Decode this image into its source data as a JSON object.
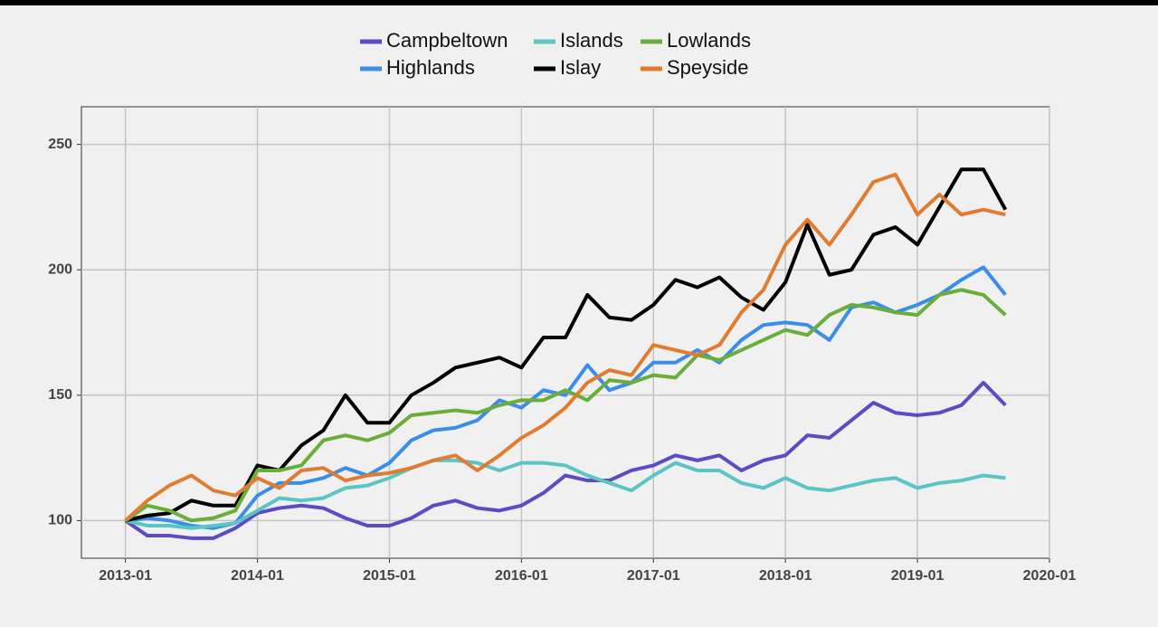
{
  "chart_data": {
    "type": "line",
    "x": [
      "2013-01",
      "2013-03",
      "2013-05",
      "2013-07",
      "2013-09",
      "2013-11",
      "2014-01",
      "2014-03",
      "2014-05",
      "2014-07",
      "2014-09",
      "2014-11",
      "2015-01",
      "2015-03",
      "2015-05",
      "2015-07",
      "2015-09",
      "2015-11",
      "2016-01",
      "2016-03",
      "2016-05",
      "2016-07",
      "2016-09",
      "2016-11",
      "2017-01",
      "2017-03",
      "2017-05",
      "2017-07",
      "2017-09",
      "2017-11",
      "2018-01",
      "2018-03",
      "2018-05",
      "2018-07",
      "2018-09",
      "2018-11",
      "2019-01",
      "2019-03",
      "2019-05",
      "2019-07",
      "2019-09"
    ],
    "series": [
      {
        "name": "Campbeltown",
        "color": "#5b4cc4",
        "values": [
          100,
          94,
          94,
          93,
          93,
          97,
          103,
          105,
          106,
          105,
          101,
          98,
          98,
          101,
          106,
          108,
          105,
          104,
          106,
          111,
          118,
          116,
          116,
          120,
          122,
          126,
          124,
          126,
          120,
          124,
          126,
          134,
          133,
          140,
          147,
          143,
          142,
          143,
          146,
          155,
          146
        ]
      },
      {
        "name": "Highlands",
        "color": "#3a8ee8",
        "values": [
          100,
          101,
          100,
          98,
          97,
          99,
          110,
          115,
          115,
          117,
          121,
          118,
          123,
          132,
          136,
          137,
          140,
          148,
          145,
          152,
          150,
          162,
          152,
          155,
          163,
          163,
          168,
          163,
          172,
          178,
          179,
          178,
          172,
          185,
          187,
          183,
          186,
          190,
          196,
          201,
          190
        ]
      },
      {
        "name": "Islands",
        "color": "#5bc4c4",
        "values": [
          100,
          98,
          98,
          97,
          98,
          99,
          104,
          109,
          108,
          109,
          113,
          114,
          117,
          121,
          124,
          124,
          123,
          120,
          123,
          123,
          122,
          118,
          115,
          112,
          118,
          123,
          120,
          120,
          115,
          113,
          117,
          113,
          112,
          114,
          116,
          117,
          113,
          115,
          116,
          118,
          117
        ]
      },
      {
        "name": "Islay",
        "color": "#000000",
        "values": [
          100,
          102,
          103,
          108,
          106,
          106,
          122,
          120,
          130,
          136,
          150,
          139,
          139,
          150,
          155,
          161,
          163,
          165,
          161,
          173,
          173,
          190,
          181,
          180,
          186,
          196,
          193,
          197,
          189,
          184,
          195,
          218,
          198,
          200,
          214,
          217,
          210,
          225,
          240,
          240,
          224
        ]
      },
      {
        "name": "Lowlands",
        "color": "#6aae3a",
        "values": [
          100,
          106,
          104,
          100,
          101,
          104,
          120,
          120,
          122,
          132,
          134,
          132,
          135,
          142,
          143,
          144,
          143,
          146,
          148,
          148,
          152,
          148,
          156,
          155,
          158,
          157,
          166,
          164,
          168,
          172,
          176,
          174,
          182,
          186,
          185,
          183,
          182,
          190,
          192,
          190,
          182
        ]
      },
      {
        "name": "Speyside",
        "color": "#e07b30",
        "values": [
          100,
          108,
          114,
          118,
          112,
          110,
          117,
          113,
          120,
          121,
          116,
          118,
          119,
          121,
          124,
          126,
          120,
          126,
          133,
          138,
          145,
          155,
          160,
          158,
          170,
          168,
          166,
          170,
          183,
          192,
          210,
          220,
          210,
          222,
          235,
          238,
          222,
          230,
          222,
          224,
          222
        ]
      }
    ],
    "xlim": [
      "2012-09",
      "2020-01"
    ],
    "xticks": [
      "2013-01",
      "2014-01",
      "2015-01",
      "2016-01",
      "2017-01",
      "2018-01",
      "2019-01",
      "2020-01"
    ],
    "ylim": [
      85,
      265
    ],
    "yticks": [
      100,
      150,
      200,
      250
    ],
    "grid": true,
    "legend": "top"
  }
}
